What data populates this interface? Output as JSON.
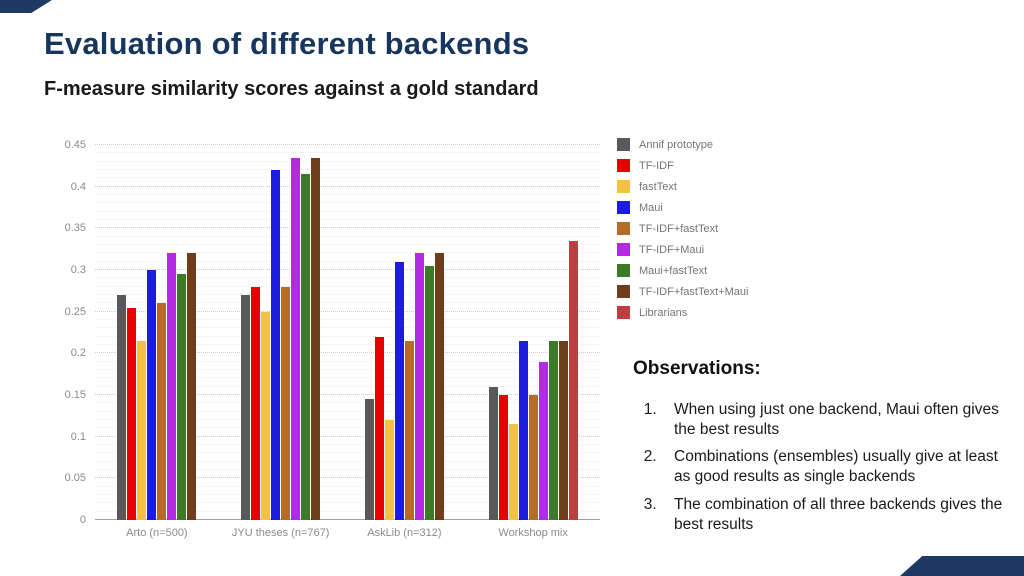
{
  "slide": {
    "title": "Evaluation of different backends",
    "subtitle": "F-measure similarity scores against a gold standard"
  },
  "observations": {
    "heading": "Observations:",
    "items": [
      "When using just one backend, Maui often gives the best results",
      "Combinations (ensembles) usually give at least as good results as single backends",
      "The combination of all three backends gives the best results"
    ]
  },
  "colors": {
    "accent_navy": "#1f3864",
    "title": "#17365d"
  },
  "chart_data": {
    "type": "bar",
    "title": "",
    "xlabel": "",
    "ylabel": "",
    "grid": true,
    "legend_position": "right",
    "ylim": [
      0,
      0.45
    ],
    "ytick_step": 0.05,
    "yticks": [
      "0",
      "0.05",
      "0.1",
      "0.15",
      "0.2",
      "0.25",
      "0.3",
      "0.35",
      "0.4",
      "0.45"
    ],
    "categories": [
      "Arto (n=500)",
      "JYU theses (n=767)",
      "AskLib (n=312)",
      "Workshop mix"
    ],
    "series": [
      {
        "name": "Annif prototype",
        "color": "#595959",
        "values": [
          0.27,
          0.27,
          0.145,
          0.16
        ]
      },
      {
        "name": "TF-IDF",
        "color": "#e60000",
        "values": [
          0.255,
          0.28,
          0.22,
          0.15
        ]
      },
      {
        "name": "fastText",
        "color": "#f3c244",
        "values": [
          0.215,
          0.25,
          0.12,
          0.115
        ]
      },
      {
        "name": "Maui",
        "color": "#1c1ce0",
        "values": [
          0.3,
          0.42,
          0.31,
          0.215
        ]
      },
      {
        "name": "TF-IDF+fastText",
        "color": "#b26e26",
        "values": [
          0.26,
          0.28,
          0.215,
          0.15
        ]
      },
      {
        "name": "TF-IDF+Maui",
        "color": "#b429e3",
        "values": [
          0.32,
          0.435,
          0.32,
          0.19
        ]
      },
      {
        "name": "Maui+fastText",
        "color": "#3d7a28",
        "values": [
          0.295,
          0.415,
          0.305,
          0.215
        ]
      },
      {
        "name": "TF-IDF+fastText+Maui",
        "color": "#6e3d1a",
        "values": [
          0.32,
          0.435,
          0.32,
          0.215
        ]
      },
      {
        "name": "Librarians",
        "color": "#bd3e3e",
        "values": [
          null,
          null,
          null,
          0.335
        ]
      }
    ]
  }
}
